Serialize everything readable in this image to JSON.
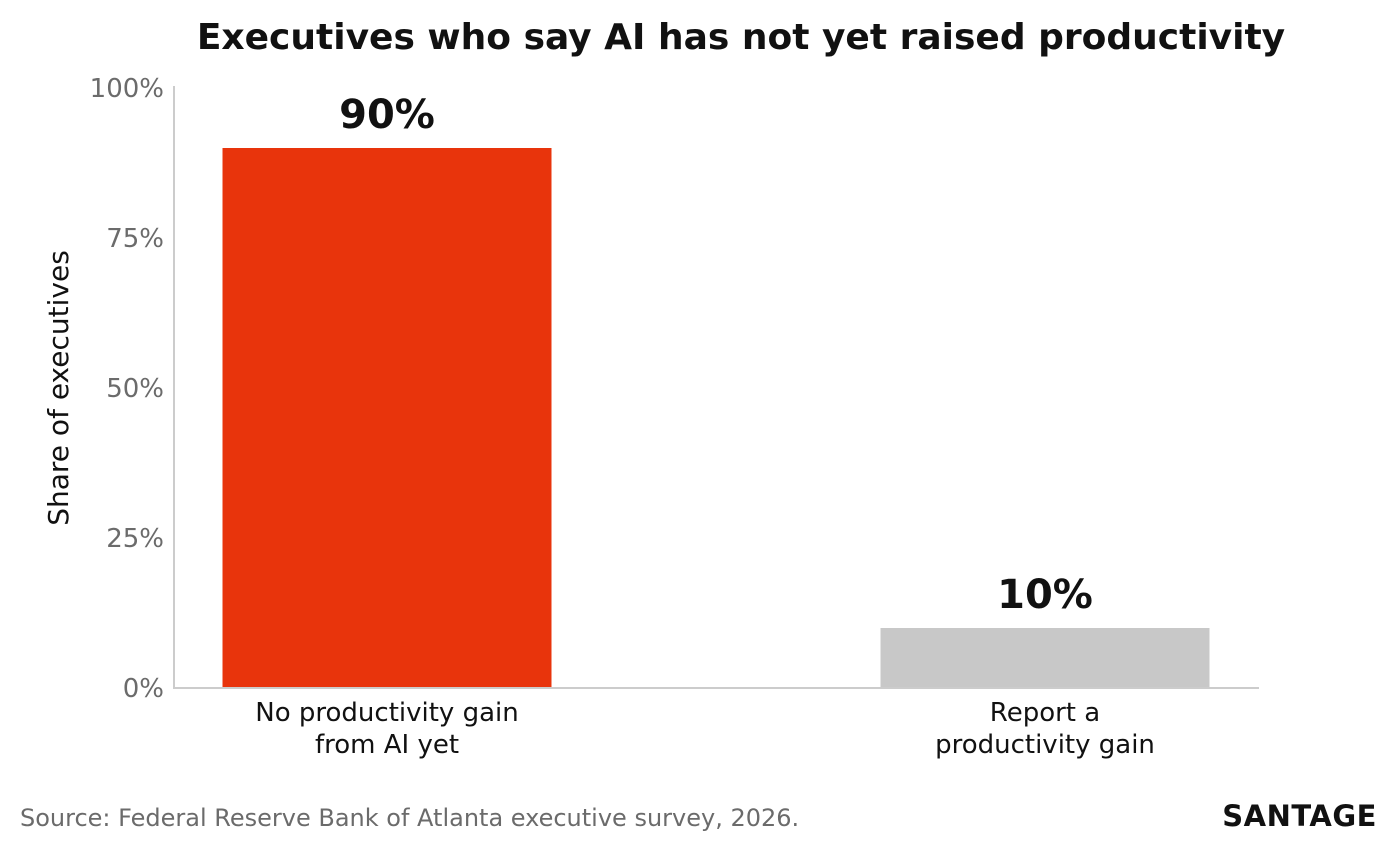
{
  "chart_data": {
    "type": "bar",
    "title": "Executives who say AI has not yet raised productivity",
    "ylabel": "Share of executives",
    "xlabel": "",
    "ylim": [
      0,
      100
    ],
    "yticks": [
      "0%",
      "25%",
      "50%",
      "75%",
      "100%"
    ],
    "ytick_values": [
      0,
      25,
      50,
      75,
      100
    ],
    "categories": [
      [
        "No productivity gain",
        "from AI yet"
      ],
      [
        "Report a",
        "productivity gain"
      ]
    ],
    "values": [
      90,
      10
    ],
    "value_labels": [
      "90%",
      "10%"
    ],
    "colors": [
      "#e8340c",
      "#c8c8c8"
    ],
    "grid": false,
    "legend": "none"
  },
  "footer": {
    "source": "Source: Federal Reserve Bank of Atlanta executive survey, 2026.",
    "brand": "SANTAGE"
  },
  "colors": {
    "axis": "#cccccc",
    "tick_text": "#6b6b6b",
    "text": "#111111"
  }
}
